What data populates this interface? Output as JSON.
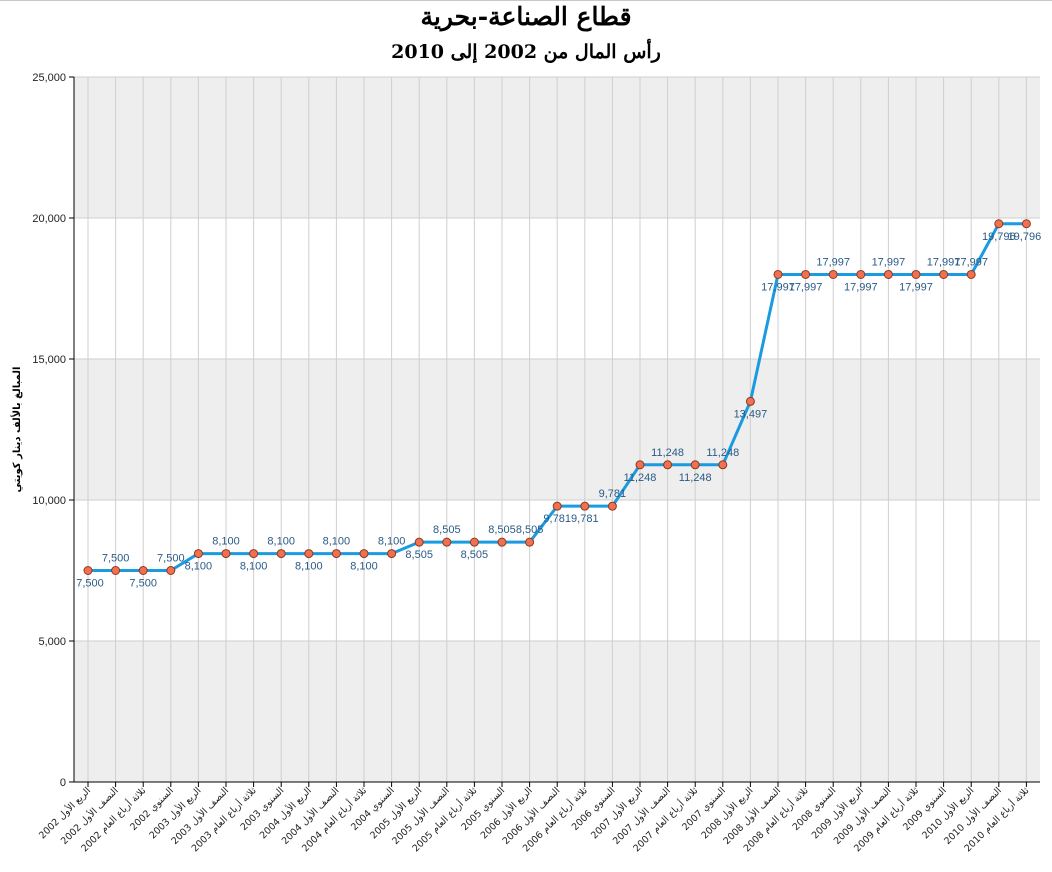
{
  "chart_data": {
    "type": "line",
    "title": "قطاع الصناعة-بحرية",
    "subtitle": "رأس المال من 2002 إلى 2010",
    "ylabel": "المبالغ بالألف دينار كويتي",
    "xlabel": "",
    "ylim": [
      0,
      25000
    ],
    "yticks": [
      0,
      5000,
      10000,
      15000,
      20000,
      25000
    ],
    "ytick_labels": [
      "0",
      "5,000",
      "10,000",
      "15,000",
      "20,000",
      "25,000"
    ],
    "grid": "on",
    "bands": "alternating grey/white",
    "categories": [
      "الربع الأول 2002",
      "النصف الأول 2002",
      "ثلاثة أرباع العام 2002",
      "السنوي 2002",
      "الربع الأول 2003",
      "النصف الأول 2003",
      "ثلاثة أرباع العام 2003",
      "السنوي 2003",
      "الربع الأول 2004",
      "النصف الأول 2004",
      "ثلاثة أرباع العام 2004",
      "السنوي 2004",
      "الربع الأول 2005",
      "النصف الأول 2005",
      "ثلاثة أرباع العام 2005",
      "السنوي 2005",
      "الربع الأول 2006",
      "النصف الأول 2006",
      "ثلاثة أرباع العام 2006",
      "السنوي 2006",
      "الربع الأول 2007",
      "النصف الأول 2007",
      "ثلاثة أرباع العام 2007",
      "السنوي 2007",
      "الربع الأول 2008",
      "النصف الأول 2008",
      "ثلاثة أرباع العام 2008",
      "السنوي 2008",
      "الربع الأول 2009",
      "النصف الأول 2009",
      "ثلاثة أرباع العام 2009",
      "السنوي 2009",
      "الربع الأول 2010",
      "النصف الأول 2010",
      "ثلاثة أرباع العام 2010"
    ],
    "values": [
      7500,
      7500,
      7500,
      7500,
      8100,
      8100,
      8100,
      8100,
      8100,
      8100,
      8100,
      8100,
      8505,
      8505,
      8505,
      8505,
      8505,
      9781,
      9781,
      9781,
      11248,
      11248,
      11248,
      11248,
      13497,
      17997,
      17997,
      17997,
      17997,
      17997,
      17997,
      17997,
      17997,
      19796,
      19796
    ],
    "labels": [
      "7,500",
      "7,500",
      "7,500",
      "7,500",
      "8,100",
      "8,100",
      "8,100",
      "8,100",
      "8,100",
      "8,100",
      "8,100",
      "8,100",
      "8,505",
      "8,505",
      "8,505",
      "8,505",
      "8,505",
      "9,781",
      "9,781",
      "9,781",
      "11,248",
      "11,248",
      "11,248",
      "11,248",
      "13,497",
      "17,997",
      "17,997",
      "17,997",
      "17,997",
      "17,997",
      "17,997",
      "17,997",
      "17,997",
      "19,796",
      "19,796"
    ],
    "colors": {
      "line": "#1a9ae0",
      "marker_fill": "#f07050",
      "marker_stroke": "#8a3a20",
      "label": "#2a5a85",
      "band": "#eeeeee",
      "grid": "#cfcfcf"
    }
  }
}
